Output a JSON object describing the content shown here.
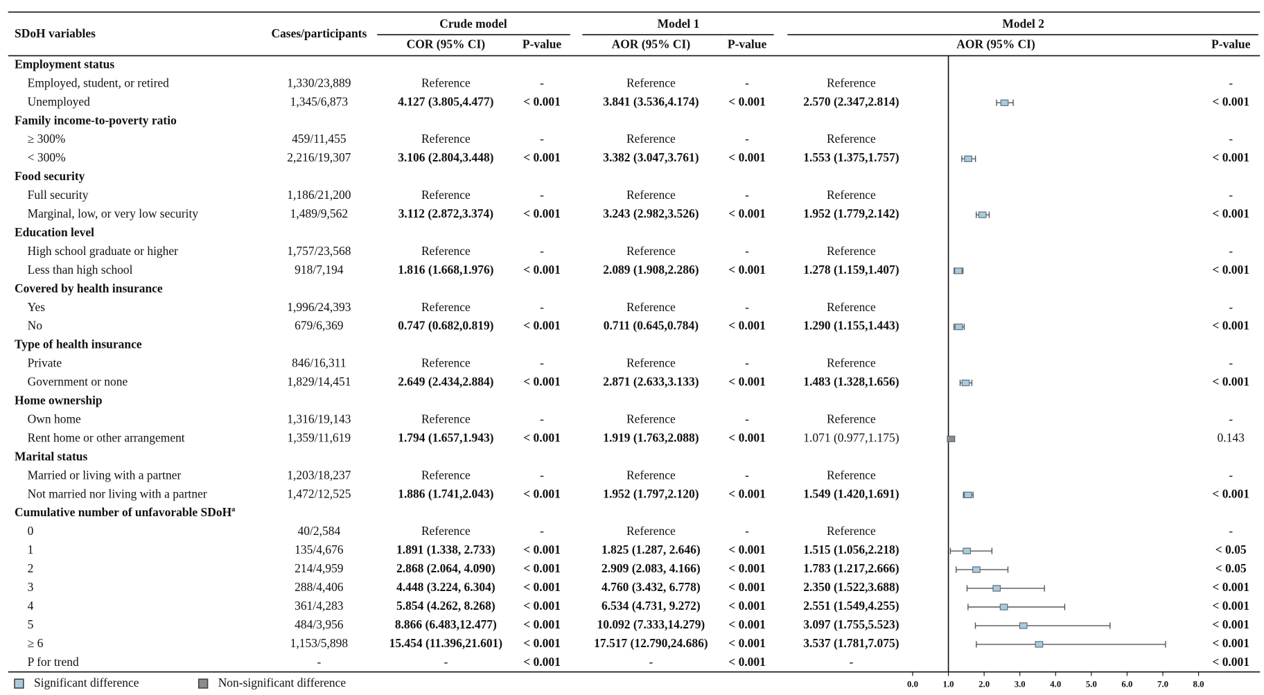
{
  "header": {
    "variables": "SDoH variables",
    "cases": "Cases/participants",
    "crude": "Crude model",
    "model1": "Model 1",
    "model2": "Model 2",
    "cor": "COR (95% CI)",
    "p": "P-value",
    "aor": "AOR (95% CI)"
  },
  "sections": [
    {
      "title": "Employment status",
      "rows": [
        {
          "label": "Employed, student, or retired",
          "cases": "1,330/23,889",
          "cor": "Reference",
          "cor_p": "-",
          "aor1": "Reference",
          "aor1_p": "-",
          "aor2": "Reference",
          "aor2_p": "-"
        },
        {
          "label": "Unemployed",
          "cases": "1,345/6,873",
          "cor": "4.127 (3.805,4.477)",
          "cor_p": "< 0.001",
          "aor1": "3.841 (3.536,4.174)",
          "aor1_p": "< 0.001",
          "aor2": "2.570 (2.347,2.814)",
          "aor2_p": "< 0.001",
          "forest": {
            "or": 2.57,
            "lo": 2.347,
            "hi": 2.814,
            "significant": true
          }
        }
      ]
    },
    {
      "title": "Family income-to-poverty ratio",
      "rows": [
        {
          "label": "≥ 300%",
          "cases": "459/11,455",
          "cor": "Reference",
          "cor_p": "-",
          "aor1": "Reference",
          "aor1_p": "-",
          "aor2": "Reference",
          "aor2_p": "-"
        },
        {
          "label": "< 300%",
          "cases": "2,216/19,307",
          "cor": "3.106 (2.804,3.448)",
          "cor_p": "< 0.001",
          "aor1": "3.382 (3.047,3.761)",
          "aor1_p": "< 0.001",
          "aor2": "1.553 (1.375,1.757)",
          "aor2_p": "< 0.001",
          "forest": {
            "or": 1.553,
            "lo": 1.375,
            "hi": 1.757,
            "significant": true
          }
        }
      ]
    },
    {
      "title": "Food security",
      "rows": [
        {
          "label": "Full security",
          "cases": "1,186/21,200",
          "cor": "Reference",
          "cor_p": "-",
          "aor1": "Reference",
          "aor1_p": "-",
          "aor2": "Reference",
          "aor2_p": "-"
        },
        {
          "label": "Marginal, low, or very low security",
          "cases": "1,489/9,562",
          "cor": "3.112 (2.872,3.374)",
          "cor_p": "< 0.001",
          "aor1": "3.243 (2.982,3.526)",
          "aor1_p": "< 0.001",
          "aor2": "1.952 (1.779,2.142)",
          "aor2_p": "< 0.001",
          "forest": {
            "or": 1.952,
            "lo": 1.779,
            "hi": 2.142,
            "significant": true
          }
        }
      ]
    },
    {
      "title": "Education level",
      "rows": [
        {
          "label": "High school graduate or higher",
          "cases": "1,757/23,568",
          "cor": "Reference",
          "cor_p": "-",
          "aor1": "Reference",
          "aor1_p": "-",
          "aor2": "Reference",
          "aor2_p": "-"
        },
        {
          "label": "Less than high school",
          "cases": "918/7,194",
          "cor": "1.816 (1.668,1.976)",
          "cor_p": "< 0.001",
          "aor1": "2.089 (1.908,2.286)",
          "aor1_p": "< 0.001",
          "aor2": "1.278 (1.159,1.407)",
          "aor2_p": "< 0.001",
          "forest": {
            "or": 1.278,
            "lo": 1.159,
            "hi": 1.407,
            "significant": true
          }
        }
      ]
    },
    {
      "title": "Covered by health insurance",
      "rows": [
        {
          "label": "Yes",
          "cases": "1,996/24,393",
          "cor": "Reference",
          "cor_p": "-",
          "aor1": "Reference",
          "aor1_p": "-",
          "aor2": "Reference",
          "aor2_p": "-"
        },
        {
          "label": "No",
          "cases": "679/6,369",
          "cor": "0.747 (0.682,0.819)",
          "cor_p": "< 0.001",
          "aor1": "0.711 (0.645,0.784)",
          "aor1_p": "< 0.001",
          "aor2": "1.290 (1.155,1.443)",
          "aor2_p": "< 0.001",
          "forest": {
            "or": 1.29,
            "lo": 1.155,
            "hi": 1.443,
            "significant": true
          }
        }
      ]
    },
    {
      "title": "Type of health insurance",
      "rows": [
        {
          "label": "Private",
          "cases": "846/16,311",
          "cor": "Reference",
          "cor_p": "-",
          "aor1": "Reference",
          "aor1_p": "-",
          "aor2": "Reference",
          "aor2_p": "-"
        },
        {
          "label": "Government or none",
          "cases": "1,829/14,451",
          "cor": "2.649 (2.434,2.884)",
          "cor_p": "< 0.001",
          "aor1": "2.871 (2.633,3.133)",
          "aor1_p": "< 0.001",
          "aor2": "1.483 (1.328,1.656)",
          "aor2_p": "< 0.001",
          "forest": {
            "or": 1.483,
            "lo": 1.328,
            "hi": 1.656,
            "significant": true
          }
        }
      ]
    },
    {
      "title": "Home ownership",
      "rows": [
        {
          "label": "Own home",
          "cases": "1,316/19,143",
          "cor": "Reference",
          "cor_p": "-",
          "aor1": "Reference",
          "aor1_p": "-",
          "aor2": "Reference",
          "aor2_p": "-"
        },
        {
          "label": "Rent home or other arrangement",
          "cases": "1,359/11,619",
          "cor": "1.794 (1.657,1.943)",
          "cor_p": "< 0.001",
          "aor1": "1.919 (1.763,2.088)",
          "aor1_p": "< 0.001",
          "aor2": "1.071 (0.977,1.175)",
          "aor2_p": "0.143",
          "forest": {
            "or": 1.071,
            "lo": 0.977,
            "hi": 1.175,
            "significant": false
          }
        }
      ]
    },
    {
      "title": "Marital status",
      "rows": [
        {
          "label": "Married or living with a partner",
          "cases": "1,203/18,237",
          "cor": "Reference",
          "cor_p": "-",
          "aor1": "Reference",
          "aor1_p": "-",
          "aor2": "Reference",
          "aor2_p": "-"
        },
        {
          "label": "Not married nor living with a partner",
          "cases": "1,472/12,525",
          "cor": "1.886 (1.741,2.043)",
          "cor_p": "< 0.001",
          "aor1": "1.952 (1.797,2.120)",
          "aor1_p": "< 0.001",
          "aor2": "1.549 (1.420,1.691)",
          "aor2_p": "< 0.001",
          "forest": {
            "or": 1.549,
            "lo": 1.42,
            "hi": 1.691,
            "significant": true
          }
        }
      ]
    },
    {
      "title": "Cumulative number of unfavorable SDoH",
      "title_note": "a",
      "rows": [
        {
          "label": "0",
          "cases": "40/2,584",
          "cor": "Reference",
          "cor_p": "-",
          "aor1": "Reference",
          "aor1_p": "-",
          "aor2": "Reference",
          "aor2_p": "-"
        },
        {
          "label": "1",
          "cases": "135/4,676",
          "cor": "1.891 (1.338, 2.733)",
          "cor_p": "< 0.001",
          "aor1": "1.825 (1.287, 2.646)",
          "aor1_p": "< 0.001",
          "aor2": "1.515 (1.056,2.218)",
          "aor2_p": "< 0.05",
          "forest": {
            "or": 1.515,
            "lo": 1.056,
            "hi": 2.218,
            "significant": true
          }
        },
        {
          "label": "2",
          "cases": "214/4,959",
          "cor": "2.868 (2.064, 4.090)",
          "cor_p": "< 0.001",
          "aor1": "2.909 (2.083, 4.166)",
          "aor1_p": "< 0.001",
          "aor2": "1.783 (1.217,2.666)",
          "aor2_p": "< 0.05",
          "forest": {
            "or": 1.783,
            "lo": 1.217,
            "hi": 2.666,
            "significant": true
          }
        },
        {
          "label": "3",
          "cases": "288/4,406",
          "cor": "4.448 (3.224, 6.304)",
          "cor_p": "< 0.001",
          "aor1": "4.760 (3.432, 6.778)",
          "aor1_p": "< 0.001",
          "aor2": "2.350 (1.522,3.688)",
          "aor2_p": "< 0.001",
          "forest": {
            "or": 2.35,
            "lo": 1.522,
            "hi": 3.688,
            "significant": true
          }
        },
        {
          "label": "4",
          "cases": "361/4,283",
          "cor": "5.854 (4.262, 8.268)",
          "cor_p": "< 0.001",
          "aor1": "6.534 (4.731, 9.272)",
          "aor1_p": "< 0.001",
          "aor2": "2.551 (1.549,4.255)",
          "aor2_p": "< 0.001",
          "forest": {
            "or": 2.551,
            "lo": 1.549,
            "hi": 4.255,
            "significant": true
          }
        },
        {
          "label": "5",
          "cases": "484/3,956",
          "cor": "8.866 (6.483,12.477)",
          "cor_p": "< 0.001",
          "aor1": "10.092 (7.333,14.279)",
          "aor1_p": "< 0.001",
          "aor2": "3.097 (1.755,5.523)",
          "aor2_p": "< 0.001",
          "forest": {
            "or": 3.097,
            "lo": 1.755,
            "hi": 5.523,
            "significant": true
          }
        },
        {
          "label": "≥ 6",
          "cases": "1,153/5,898",
          "cor": "15.454 (11.396,21.601)",
          "cor_p": "< 0.001",
          "aor1": "17.517 (12.790,24.686)",
          "aor1_p": "< 0.001",
          "aor2": "3.537 (1.781,7.075)",
          "aor2_p": "< 0.001",
          "forest": {
            "or": 3.537,
            "lo": 1.781,
            "hi": 7.075,
            "significant": true
          }
        },
        {
          "label": "P for trend",
          "cases": "-",
          "cor": "-",
          "cor_p": "< 0.001",
          "aor1": "-",
          "aor1_p": "< 0.001",
          "aor2": "-",
          "aor2_p": "< 0.001"
        }
      ]
    }
  ],
  "forest_axis": {
    "xlim": [
      0,
      8
    ],
    "xticks": [
      {
        "value": 0,
        "label": "0.0"
      },
      {
        "value": 1,
        "label": "1.0"
      },
      {
        "value": 2,
        "label": "2.0"
      },
      {
        "value": 3,
        "label": "3.0"
      },
      {
        "value": 4,
        "label": "4.0"
      },
      {
        "value": 5,
        "label": "5.0"
      },
      {
        "value": 6,
        "label": "6.0"
      },
      {
        "value": 7,
        "label": "7.0"
      },
      {
        "value": 8,
        "label": "8.0"
      }
    ]
  },
  "legend": [
    {
      "label": "Significant difference",
      "color": "#a9cbe0"
    },
    {
      "label": "Non-significant difference",
      "color": "#8c8c8c"
    }
  ]
}
